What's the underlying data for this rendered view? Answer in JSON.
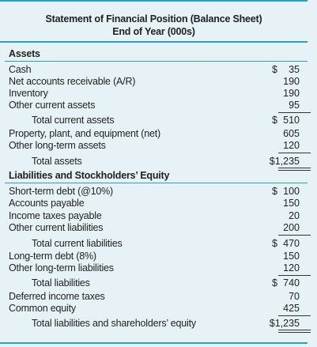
{
  "header": {
    "title": "Statement of Financial Position (Balance Sheet)",
    "subtitle": "End of Year (000s)"
  },
  "assets": {
    "heading": "Assets",
    "rows": [
      {
        "label": "Cash",
        "dollar": "$",
        "amount": "35"
      },
      {
        "label": "Net accounts receivable (A/R)",
        "dollar": "",
        "amount": "190"
      },
      {
        "label": "Inventory",
        "dollar": "",
        "amount": "190"
      },
      {
        "label": "Other current assets",
        "dollar": "",
        "amount": "95"
      },
      {
        "label": "Total current assets",
        "dollar": "$",
        "amount": "510"
      },
      {
        "label": "Property, plant, and equipment (net)",
        "dollar": "",
        "amount": "605"
      },
      {
        "label": "Other long-term assets",
        "dollar": "",
        "amount": "120"
      },
      {
        "label": "Total assets",
        "dollar": "",
        "amount": "$1,235"
      }
    ]
  },
  "liabilities": {
    "heading": "Liabilities and Stockholders’ Equity",
    "rows": [
      {
        "label": "Short-term debt (@10%)",
        "dollar": "$",
        "amount": "100"
      },
      {
        "label": "Accounts payable",
        "dollar": "",
        "amount": "150"
      },
      {
        "label": "Income taxes payable",
        "dollar": "",
        "amount": "20"
      },
      {
        "label": "Other current liabilities",
        "dollar": "",
        "amount": "200"
      },
      {
        "label": "Total current liabilities",
        "dollar": "$",
        "amount": "470"
      },
      {
        "label": "Long-term debt (8%)",
        "dollar": "",
        "amount": "150"
      },
      {
        "label": "Other long-term liabilities",
        "dollar": "",
        "amount": "120"
      },
      {
        "label": "Total liabilities",
        "dollar": "$",
        "amount": "740"
      },
      {
        "label": "Deferred income taxes",
        "dollar": "",
        "amount": "70"
      },
      {
        "label": "Common equity",
        "dollar": "",
        "amount": "425"
      },
      {
        "label": "Total liabilities and shareholders’ equity",
        "dollar": "",
        "amount": "$1,235"
      }
    ]
  }
}
